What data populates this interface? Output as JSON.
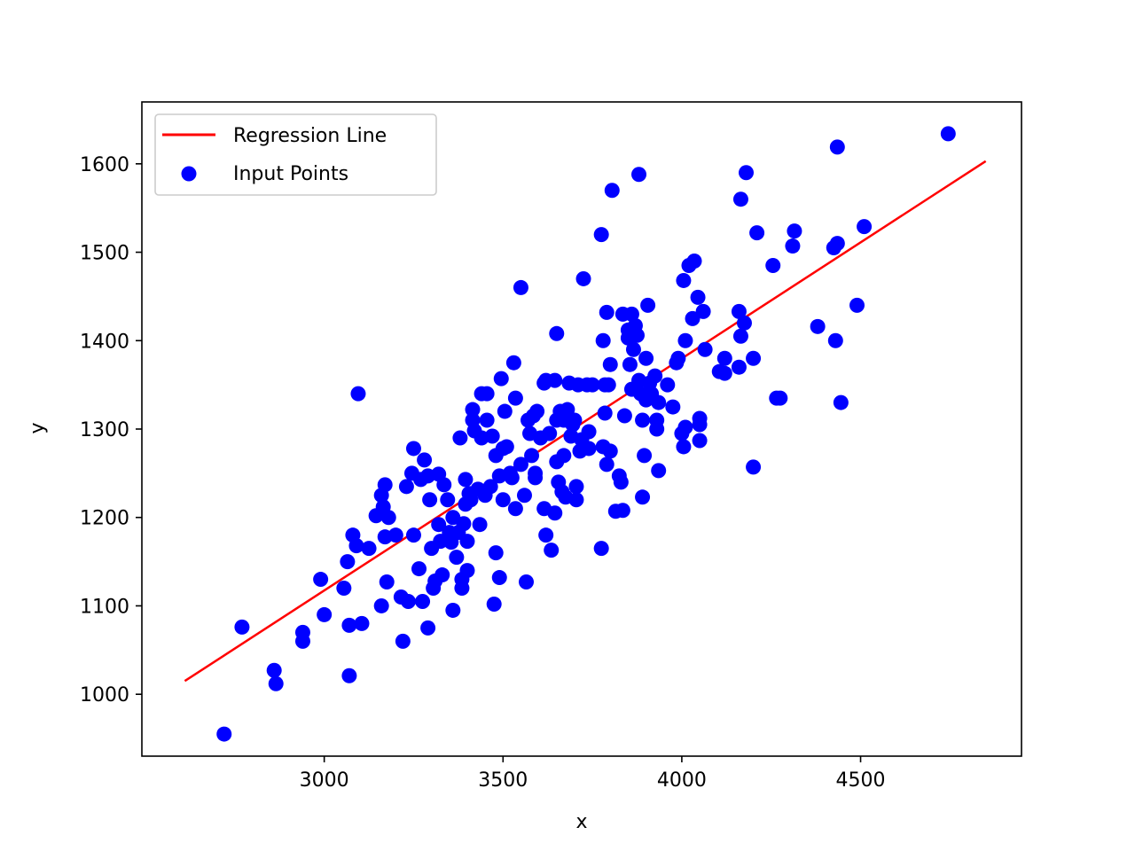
{
  "chart_data": {
    "type": "scatter",
    "title": "",
    "xlabel": "x",
    "ylabel": "y",
    "xlim": [
      2490,
      4950
    ],
    "ylim": [
      930,
      1670
    ],
    "xticks": [
      3000,
      3500,
      4000,
      4500
    ],
    "yticks": [
      1000,
      1100,
      1200,
      1300,
      1400,
      1500,
      1600
    ],
    "grid": false,
    "legend_position": "upper left",
    "legend": [
      "Regression Line",
      "Input Points"
    ],
    "colors": {
      "points": "#0000ff",
      "line": "#ff0000"
    },
    "series": [
      {
        "name": "Regression Line",
        "kind": "line",
        "x": [
          2610,
          4850
        ],
        "y": [
          1015,
          1603
        ]
      },
      {
        "name": "Input Points",
        "kind": "scatter",
        "points": [
          [
            2720,
            955
          ],
          [
            2770,
            1076
          ],
          [
            2860,
            1027
          ],
          [
            2865,
            1012
          ],
          [
            2940,
            1070
          ],
          [
            2940,
            1060
          ],
          [
            2990,
            1130
          ],
          [
            3000,
            1090
          ],
          [
            3055,
            1120
          ],
          [
            3065,
            1150
          ],
          [
            3070,
            1078
          ],
          [
            3070,
            1021
          ],
          [
            3080,
            1180
          ],
          [
            3090,
            1168
          ],
          [
            3095,
            1340
          ],
          [
            3105,
            1080
          ],
          [
            3125,
            1165
          ],
          [
            3145,
            1202
          ],
          [
            3160,
            1225
          ],
          [
            3160,
            1100
          ],
          [
            3165,
            1212
          ],
          [
            3170,
            1237
          ],
          [
            3170,
            1178
          ],
          [
            3175,
            1127
          ],
          [
            3180,
            1200
          ],
          [
            3200,
            1180
          ],
          [
            3215,
            1110
          ],
          [
            3220,
            1060
          ],
          [
            3230,
            1235
          ],
          [
            3235,
            1105
          ],
          [
            3245,
            1250
          ],
          [
            3250,
            1180
          ],
          [
            3250,
            1278
          ],
          [
            3265,
            1142
          ],
          [
            3270,
            1243
          ],
          [
            3275,
            1105
          ],
          [
            3280,
            1265
          ],
          [
            3290,
            1247
          ],
          [
            3290,
            1075
          ],
          [
            3295,
            1220
          ],
          [
            3300,
            1165
          ],
          [
            3305,
            1120
          ],
          [
            3310,
            1128
          ],
          [
            3320,
            1192
          ],
          [
            3320,
            1249
          ],
          [
            3325,
            1173
          ],
          [
            3330,
            1135
          ],
          [
            3335,
            1237
          ],
          [
            3345,
            1220
          ],
          [
            3350,
            1183
          ],
          [
            3355,
            1172
          ],
          [
            3360,
            1095
          ],
          [
            3360,
            1200
          ],
          [
            3370,
            1155
          ],
          [
            3375,
            1183
          ],
          [
            3380,
            1290
          ],
          [
            3385,
            1120
          ],
          [
            3385,
            1130
          ],
          [
            3390,
            1193
          ],
          [
            3395,
            1243
          ],
          [
            3395,
            1215
          ],
          [
            3400,
            1140
          ],
          [
            3400,
            1173
          ],
          [
            3405,
            1227
          ],
          [
            3410,
            1220
          ],
          [
            3415,
            1310
          ],
          [
            3415,
            1322
          ],
          [
            3420,
            1298
          ],
          [
            3430,
            1232
          ],
          [
            3435,
            1192
          ],
          [
            3440,
            1290
          ],
          [
            3440,
            1340
          ],
          [
            3450,
            1225
          ],
          [
            3455,
            1340
          ],
          [
            3455,
            1310
          ],
          [
            3465,
            1235
          ],
          [
            3470,
            1292
          ],
          [
            3475,
            1102
          ],
          [
            3480,
            1160
          ],
          [
            3480,
            1270
          ],
          [
            3490,
            1132
          ],
          [
            3490,
            1247
          ],
          [
            3495,
            1357
          ],
          [
            3500,
            1220
          ],
          [
            3500,
            1278
          ],
          [
            3505,
            1320
          ],
          [
            3510,
            1280
          ],
          [
            3520,
            1250
          ],
          [
            3525,
            1245
          ],
          [
            3530,
            1375
          ],
          [
            3535,
            1335
          ],
          [
            3535,
            1210
          ],
          [
            3550,
            1460
          ],
          [
            3550,
            1260
          ],
          [
            3560,
            1225
          ],
          [
            3565,
            1127
          ],
          [
            3570,
            1310
          ],
          [
            3575,
            1295
          ],
          [
            3580,
            1270
          ],
          [
            3585,
            1315
          ],
          [
            3590,
            1250
          ],
          [
            3590,
            1245
          ],
          [
            3595,
            1320
          ],
          [
            3605,
            1290
          ],
          [
            3615,
            1352
          ],
          [
            3615,
            1210
          ],
          [
            3620,
            1355
          ],
          [
            3620,
            1180
          ],
          [
            3630,
            1295
          ],
          [
            3635,
            1163
          ],
          [
            3645,
            1355
          ],
          [
            3645,
            1205
          ],
          [
            3650,
            1310
          ],
          [
            3650,
            1408
          ],
          [
            3650,
            1263
          ],
          [
            3655,
            1240
          ],
          [
            3660,
            1320
          ],
          [
            3665,
            1229
          ],
          [
            3670,
            1310
          ],
          [
            3670,
            1270
          ],
          [
            3675,
            1223
          ],
          [
            3680,
            1322
          ],
          [
            3685,
            1352
          ],
          [
            3690,
            1292
          ],
          [
            3695,
            1305
          ],
          [
            3700,
            1310
          ],
          [
            3705,
            1220
          ],
          [
            3705,
            1235
          ],
          [
            3710,
            1350
          ],
          [
            3715,
            1275
          ],
          [
            3720,
            1288
          ],
          [
            3725,
            1470
          ],
          [
            3735,
            1350
          ],
          [
            3740,
            1297
          ],
          [
            3740,
            1278
          ],
          [
            3750,
            1350
          ],
          [
            3775,
            1520
          ],
          [
            3775,
            1165
          ],
          [
            3780,
            1400
          ],
          [
            3780,
            1280
          ],
          [
            3785,
            1318
          ],
          [
            3785,
            1350
          ],
          [
            3790,
            1260
          ],
          [
            3790,
            1432
          ],
          [
            3795,
            1350
          ],
          [
            3800,
            1373
          ],
          [
            3800,
            1275
          ],
          [
            3805,
            1570
          ],
          [
            3815,
            1207
          ],
          [
            3825,
            1247
          ],
          [
            3830,
            1240
          ],
          [
            3835,
            1208
          ],
          [
            3835,
            1430
          ],
          [
            3840,
            1315
          ],
          [
            3850,
            1412
          ],
          [
            3850,
            1403
          ],
          [
            3855,
            1373
          ],
          [
            3860,
            1430
          ],
          [
            3860,
            1345
          ],
          [
            3865,
            1390
          ],
          [
            3870,
            1417
          ],
          [
            3875,
            1406
          ],
          [
            3880,
            1588
          ],
          [
            3880,
            1355
          ],
          [
            3885,
            1340
          ],
          [
            3890,
            1310
          ],
          [
            3890,
            1223
          ],
          [
            3895,
            1270
          ],
          [
            3900,
            1380
          ],
          [
            3900,
            1333
          ],
          [
            3905,
            1440
          ],
          [
            3910,
            1352
          ],
          [
            3915,
            1340
          ],
          [
            3925,
            1360
          ],
          [
            3930,
            1310
          ],
          [
            3930,
            1300
          ],
          [
            3935,
            1253
          ],
          [
            3935,
            1330
          ],
          [
            3960,
            1350
          ],
          [
            3975,
            1325
          ],
          [
            3985,
            1375
          ],
          [
            3990,
            1380
          ],
          [
            4000,
            1295
          ],
          [
            4005,
            1280
          ],
          [
            4005,
            1468
          ],
          [
            4010,
            1400
          ],
          [
            4010,
            1302
          ],
          [
            4020,
            1485
          ],
          [
            4030,
            1425
          ],
          [
            4035,
            1490
          ],
          [
            4045,
            1449
          ],
          [
            4050,
            1287
          ],
          [
            4050,
            1312
          ],
          [
            4050,
            1305
          ],
          [
            4060,
            1433
          ],
          [
            4065,
            1390
          ],
          [
            4105,
            1365
          ],
          [
            4120,
            1363
          ],
          [
            4120,
            1380
          ],
          [
            4160,
            1433
          ],
          [
            4160,
            1370
          ],
          [
            4165,
            1405
          ],
          [
            4165,
            1560
          ],
          [
            4175,
            1420
          ],
          [
            4180,
            1590
          ],
          [
            4200,
            1257
          ],
          [
            4200,
            1380
          ],
          [
            4210,
            1522
          ],
          [
            4255,
            1485
          ],
          [
            4265,
            1335
          ],
          [
            4275,
            1335
          ],
          [
            4310,
            1507
          ],
          [
            4315,
            1524
          ],
          [
            4380,
            1416
          ],
          [
            4425,
            1505
          ],
          [
            4430,
            1400
          ],
          [
            4435,
            1510
          ],
          [
            4435,
            1619
          ],
          [
            4445,
            1330
          ],
          [
            4490,
            1440
          ],
          [
            4510,
            1529
          ],
          [
            4745,
            1634
          ]
        ]
      }
    ]
  }
}
